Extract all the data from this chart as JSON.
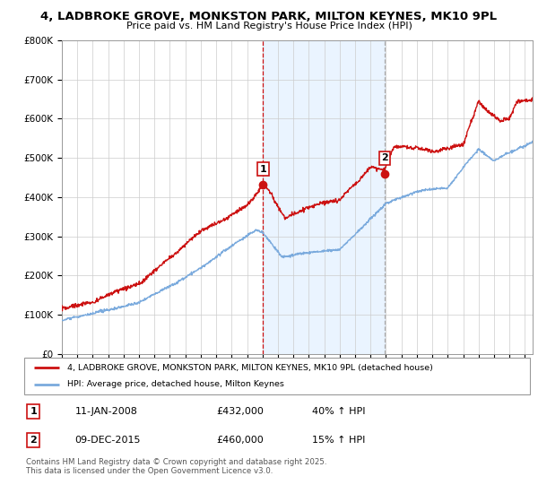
{
  "title": "4, LADBROKE GROVE, MONKSTON PARK, MILTON KEYNES, MK10 9PL",
  "subtitle": "Price paid vs. HM Land Registry's House Price Index (HPI)",
  "ylim": [
    0,
    800000
  ],
  "xlim_start": 1995.0,
  "xlim_end": 2025.5,
  "background_color": "#ffffff",
  "grid_color": "#cccccc",
  "sale1_date": 2008.03,
  "sale1_price": 432000,
  "sale1_hpi_change": "40% ↑ HPI",
  "sale1_date_str": "11-JAN-2008",
  "sale2_date": 2015.92,
  "sale2_price": 460000,
  "sale2_hpi_change": "15% ↑ HPI",
  "sale2_date_str": "09-DEC-2015",
  "hpi_color": "#7aaadd",
  "price_color": "#cc1111",
  "legend_label_price": "4, LADBROKE GROVE, MONKSTON PARK, MILTON KEYNES, MK10 9PL (detached house)",
  "legend_label_hpi": "HPI: Average price, detached house, Milton Keynes",
  "footer": "Contains HM Land Registry data © Crown copyright and database right 2025.\nThis data is licensed under the Open Government Licence v3.0.",
  "ytick_labels": [
    "£0",
    "£100K",
    "£200K",
    "£300K",
    "£400K",
    "£500K",
    "£600K",
    "£700K",
    "£800K"
  ],
  "ytick_values": [
    0,
    100000,
    200000,
    300000,
    400000,
    500000,
    600000,
    700000,
    800000
  ],
  "span_color": "#ddeeff",
  "span_alpha": 0.6
}
